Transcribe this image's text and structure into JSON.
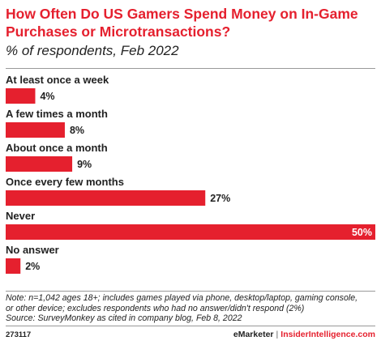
{
  "header": {
    "title": "How Often Do US Gamers Spend Money on In-Game Purchases or Microtransactions?",
    "subtitle": "% of respondents, Feb 2022"
  },
  "chart_data": {
    "type": "bar",
    "orientation": "horizontal",
    "categories": [
      "At least once a week",
      "A few times a month",
      "About once a month",
      "Once every few months",
      "Never",
      "No answer"
    ],
    "values": [
      4,
      8,
      9,
      27,
      50,
      2
    ],
    "value_labels": [
      "4%",
      "8%",
      "9%",
      "27%",
      "50%",
      "2%"
    ],
    "xlim": [
      0,
      50
    ],
    "grid": false,
    "bar_color": "#e5202e"
  },
  "footer": {
    "note_lines": [
      "Note: n=1,042 ages 18+; includes games played via phone, desktop/laptop, gaming console,",
      "or other device; excludes respondents who had no answer/didn't respond (2%)",
      "Source: SurveyMonkey as cited in company blog, Feb 8, 2022"
    ],
    "chart_id": "273117",
    "brand_left": "eMarketer",
    "brand_sep": "|",
    "brand_right": "InsiderIntelligence.com"
  },
  "colors": {
    "accent": "#e5202e",
    "text": "#222222"
  }
}
